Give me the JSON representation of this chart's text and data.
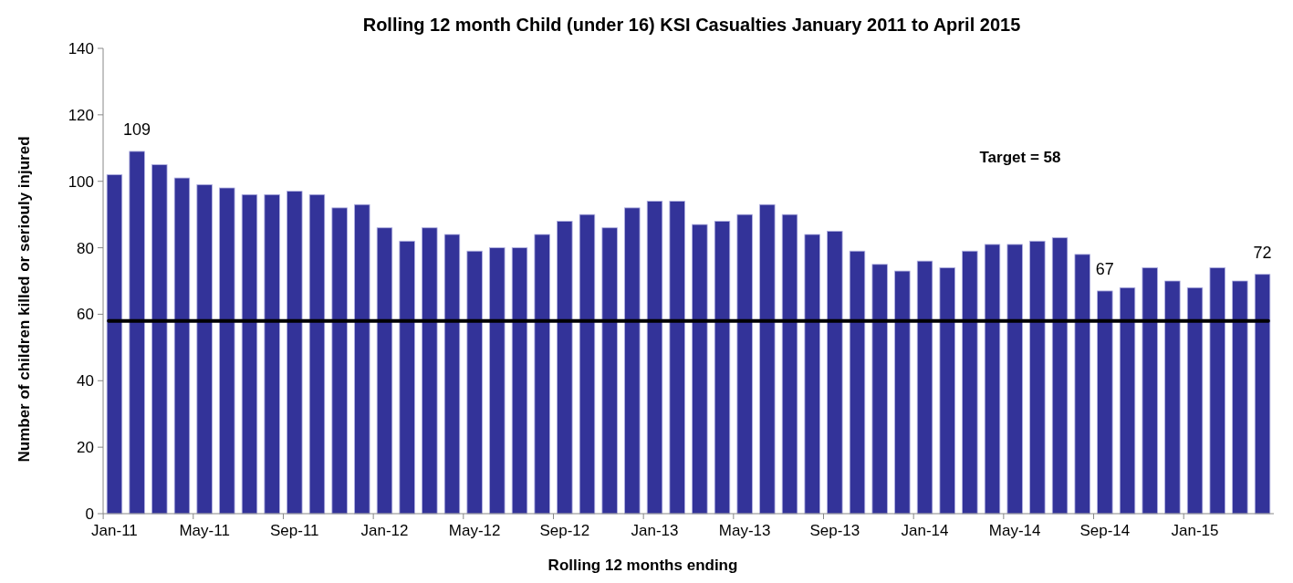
{
  "chart_data": {
    "type": "bar",
    "title": "Rolling 12 month Child (under 16) KSI Casualties January 2011 to April 2015",
    "xlabel": "Rolling 12 months ending",
    "ylabel": "Number of children killed or seriouly injured",
    "categories": [
      "Jan-11",
      null,
      null,
      null,
      "May-11",
      null,
      null,
      null,
      "Sep-11",
      null,
      null,
      null,
      "Jan-12",
      null,
      null,
      null,
      "May-12",
      null,
      null,
      null,
      "Sep-12",
      null,
      null,
      null,
      "Jan-13",
      null,
      null,
      null,
      "May-13",
      null,
      null,
      null,
      "Sep-13",
      null,
      null,
      null,
      "Jan-14",
      null,
      null,
      null,
      "May-14",
      null,
      null,
      null,
      "Sep-14",
      null,
      null,
      null,
      "Jan-15",
      null,
      null,
      null
    ],
    "values": [
      102,
      109,
      105,
      101,
      99,
      98,
      96,
      96,
      97,
      96,
      92,
      93,
      86,
      82,
      86,
      84,
      79,
      80,
      80,
      84,
      88,
      90,
      86,
      92,
      94,
      94,
      87,
      88,
      90,
      93,
      90,
      84,
      85,
      79,
      75,
      73,
      76,
      74,
      79,
      81,
      81,
      82,
      83,
      78,
      67,
      68,
      74,
      70,
      68,
      74,
      70,
      72
    ],
    "value_labels": [
      null,
      "109",
      null,
      null,
      null,
      null,
      null,
      null,
      null,
      null,
      null,
      null,
      null,
      null,
      null,
      null,
      null,
      null,
      null,
      null,
      null,
      null,
      null,
      null,
      null,
      null,
      null,
      null,
      null,
      null,
      null,
      null,
      null,
      null,
      null,
      null,
      null,
      null,
      null,
      null,
      null,
      null,
      null,
      null,
      "67",
      null,
      null,
      null,
      null,
      null,
      null,
      "72"
    ],
    "color": "#333399",
    "ylim": [
      0,
      140
    ],
    "yticks": [
      0,
      20,
      40,
      60,
      80,
      100,
      120,
      140
    ],
    "ref_lines": [
      {
        "axis": "y",
        "value": 58,
        "label": "Target = 58",
        "color": "#000000",
        "line_style": "solid"
      }
    ]
  }
}
